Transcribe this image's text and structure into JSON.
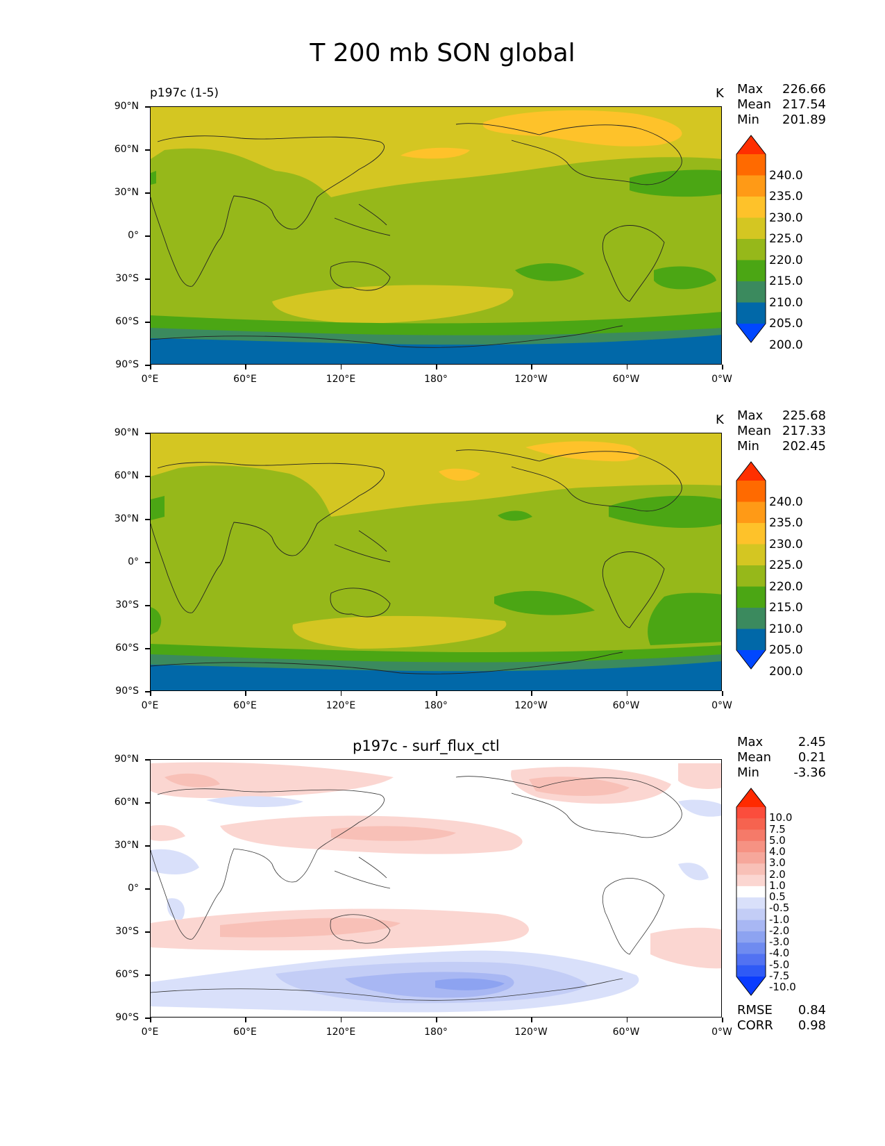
{
  "figure": {
    "title": "T 200 mb SON global"
  },
  "panels": [
    {
      "title_left": "p197c (1-5)",
      "title_center": "",
      "units": "K",
      "stats": [
        {
          "label": "Max",
          "value": "226.66"
        },
        {
          "label": "Mean",
          "value": "217.54"
        },
        {
          "label": "Min",
          "value": "201.89"
        }
      ],
      "colorbar": {
        "levels": [
          "240.0",
          "235.0",
          "230.0",
          "225.0",
          "220.0",
          "215.0",
          "210.0",
          "205.0",
          "200.0"
        ],
        "colors": [
          "#ff2f00",
          "#ff6a00",
          "#ff9a16",
          "#fec22a",
          "#d4c622",
          "#96b81a",
          "#4ba614",
          "#3b8a5e",
          "#0168a8",
          "#0047ff"
        ]
      },
      "chart_data": {
        "type": "heatmap",
        "field": "T 200 mb",
        "title": "p197c (1-5)",
        "units": "K",
        "x_ticks": [
          "0°E",
          "60°E",
          "120°E",
          "180°",
          "120°W",
          "60°W",
          "0°W"
        ],
        "y_ticks": [
          "90°N",
          "60°N",
          "30°N",
          "0°",
          "30°S",
          "60°S",
          "90°S"
        ],
        "xlim": [
          0,
          360
        ],
        "ylim": [
          -90,
          90
        ],
        "stats": {
          "max": 226.66,
          "mean": 217.54,
          "min": 201.89
        }
      }
    },
    {
      "title_left": "",
      "title_center": "",
      "units": "K",
      "stats": [
        {
          "label": "Max",
          "value": "225.68"
        },
        {
          "label": "Mean",
          "value": "217.33"
        },
        {
          "label": "Min",
          "value": "202.45"
        }
      ],
      "colorbar": {
        "levels": [
          "240.0",
          "235.0",
          "230.0",
          "225.0",
          "220.0",
          "215.0",
          "210.0",
          "205.0",
          "200.0"
        ],
        "colors": [
          "#ff2f00",
          "#ff6a00",
          "#ff9a16",
          "#fec22a",
          "#d4c622",
          "#96b81a",
          "#4ba614",
          "#3b8a5e",
          "#0168a8",
          "#0047ff"
        ]
      },
      "chart_data": {
        "type": "heatmap",
        "field": "T 200 mb",
        "units": "K",
        "x_ticks": [
          "0°E",
          "60°E",
          "120°E",
          "180°",
          "120°W",
          "60°W",
          "0°W"
        ],
        "y_ticks": [
          "90°N",
          "60°N",
          "30°N",
          "0°",
          "30°S",
          "60°S",
          "90°S"
        ],
        "xlim": [
          0,
          360
        ],
        "ylim": [
          -90,
          90
        ],
        "stats": {
          "max": 225.68,
          "mean": 217.33,
          "min": 202.45
        }
      }
    },
    {
      "title_left": "",
      "title_center": "p197c - surf_flux_ctl",
      "units": "",
      "stats": [
        {
          "label": "Max",
          "value": "2.45"
        },
        {
          "label": "Mean",
          "value": "0.21"
        },
        {
          "label": "Min",
          "value": "-3.36"
        }
      ],
      "colorbar": {
        "levels": [
          "10.0",
          "7.5",
          "5.0",
          "4.0",
          "3.0",
          "2.0",
          "1.0",
          "0.5",
          "-0.5",
          "-1.0",
          "-2.0",
          "-3.0",
          "-4.0",
          "-5.0",
          "-7.5",
          "-10.0"
        ],
        "colors": [
          "#ff2a00",
          "#fb4d3c",
          "#f6634f",
          "#f57a69",
          "#f69283",
          "#f6a79b",
          "#f8c0b7",
          "#fbd6d1",
          "#ffffff",
          "#d9e0fa",
          "#c3cdf6",
          "#a8b7f3",
          "#8da3f1",
          "#6f8bf0",
          "#5272f2",
          "#2f5af6",
          "#0a3cff"
        ]
      },
      "metrics": [
        {
          "label": "RMSE",
          "value": "0.84"
        },
        {
          "label": "CORR",
          "value": "0.98"
        }
      ],
      "chart_data": {
        "type": "heatmap",
        "field": "T 200 mb difference",
        "title": "p197c - surf_flux_ctl",
        "x_ticks": [
          "0°E",
          "60°E",
          "120°E",
          "180°",
          "120°W",
          "60°W",
          "0°W"
        ],
        "y_ticks": [
          "90°N",
          "60°N",
          "30°N",
          "0°",
          "30°S",
          "60°S",
          "90°S"
        ],
        "xlim": [
          0,
          360
        ],
        "ylim": [
          -90,
          90
        ],
        "stats": {
          "max": 2.45,
          "mean": 0.21,
          "min": -3.36,
          "rmse": 0.84,
          "corr": 0.98
        }
      }
    }
  ],
  "chart_data": [
    {
      "type": "heatmap",
      "title": "p197c (1-5)",
      "units": "K",
      "stats": {
        "max": 226.66,
        "mean": 217.54,
        "min": 201.89
      }
    },
    {
      "type": "heatmap",
      "title": "",
      "units": "K",
      "stats": {
        "max": 225.68,
        "mean": 217.33,
        "min": 202.45
      }
    },
    {
      "type": "heatmap",
      "title": "p197c - surf_flux_ctl",
      "stats": {
        "max": 2.45,
        "mean": 0.21,
        "min": -3.36,
        "rmse": 0.84,
        "corr": 0.98
      }
    }
  ]
}
